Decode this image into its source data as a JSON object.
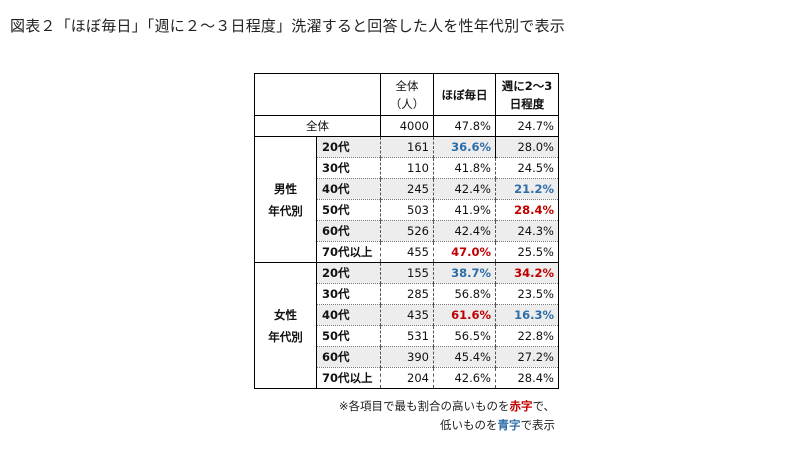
{
  "title": "図表２「ほぼ毎日」「週に２～３日程度」洗濯すると回答した人を性年代別で表示",
  "header": {
    "total_col_line1": "全体",
    "total_col_line2": "（人）",
    "daily_col": "ほぼ毎日",
    "weekly_col_line1": "週に2～3",
    "weekly_col_line2": "日程度"
  },
  "overall": {
    "label": "全体",
    "n": "4000",
    "daily": "47.8%",
    "weekly": "24.7%"
  },
  "male": {
    "label_line1": "男性",
    "label_line2": "年代別",
    "rows": [
      {
        "age": "20代",
        "n": "161",
        "daily": "36.6%",
        "weekly": "28.0%"
      },
      {
        "age": "30代",
        "n": "110",
        "daily": "41.8%",
        "weekly": "24.5%"
      },
      {
        "age": "40代",
        "n": "245",
        "daily": "42.4%",
        "weekly": "21.2%"
      },
      {
        "age": "50代",
        "n": "503",
        "daily": "41.9%",
        "weekly": "28.4%"
      },
      {
        "age": "60代",
        "n": "526",
        "daily": "42.4%",
        "weekly": "24.3%"
      },
      {
        "age": "70代以上",
        "n": "455",
        "daily": "47.0%",
        "weekly": "25.5%"
      }
    ]
  },
  "female": {
    "label_line1": "女性",
    "label_line2": "年代別",
    "rows": [
      {
        "age": "20代",
        "n": "155",
        "daily": "38.7%",
        "weekly": "34.2%"
      },
      {
        "age": "30代",
        "n": "285",
        "daily": "56.8%",
        "weekly": "23.5%"
      },
      {
        "age": "40代",
        "n": "435",
        "daily": "61.6%",
        "weekly": "16.3%"
      },
      {
        "age": "50代",
        "n": "531",
        "daily": "56.5%",
        "weekly": "22.8%"
      },
      {
        "age": "60代",
        "n": "390",
        "daily": "45.4%",
        "weekly": "27.2%"
      },
      {
        "age": "70代以上",
        "n": "204",
        "daily": "42.6%",
        "weekly": "28.4%"
      }
    ]
  },
  "note": {
    "line1_prefix": "※各項目で最も割合の高いものを",
    "line1_red": "赤字",
    "line1_suffix": "で、",
    "line2_prefix": "低いものを",
    "line2_blue": "青字",
    "line2_suffix": "で表示"
  },
  "colors": {
    "highlight_high": "#c00000",
    "highlight_low": "#2e6ea8",
    "stripe": "#ededed"
  }
}
